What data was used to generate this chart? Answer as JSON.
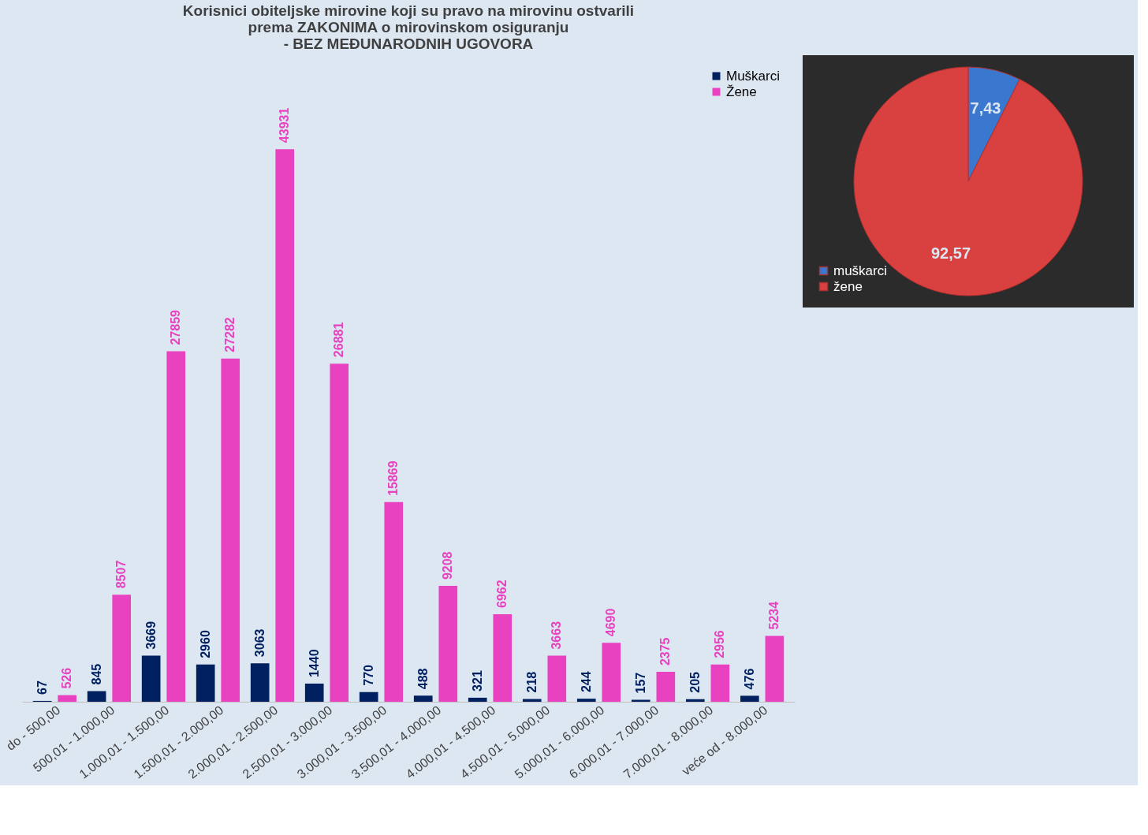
{
  "chart_data": [
    {
      "type": "bar",
      "title": "Korisnici obiteljske mirovine koji su pravo na mirovinu ostvarili\nprema ZAKONIMA o mirovinskom osiguranju\n- BEZ MEĐUNARODNIH UGOVORA",
      "categories": [
        "do - 500,00",
        "500,01 - 1.000,00",
        "1.000,01 - 1.500,00",
        "1.500,01 - 2.000,00",
        "2.000,01 - 2.500,00",
        "2.500,01 - 3.000,00",
        "3.000,01 - 3.500,00",
        "3.500,01 - 4.000,00",
        "4.000,01 - 4.500,00",
        "4.500,01 - 5.000,00",
        "5.000,01 - 6.000,00",
        "6.000,01 - 7.000,00",
        "7.000,01 - 8.000,00",
        "veće od  - 8.000,00"
      ],
      "series": [
        {
          "name": "Muškarci",
          "color": "#002060",
          "values": [
            67,
            845,
            3669,
            2960,
            3063,
            1440,
            770,
            488,
            321,
            218,
            244,
            157,
            205,
            476
          ]
        },
        {
          "name": "Žene",
          "color": "#e842c0",
          "values": [
            526,
            8507,
            27859,
            27282,
            43931,
            26881,
            15869,
            9208,
            6962,
            3663,
            4690,
            2375,
            2956,
            5234
          ]
        }
      ],
      "data_labels": true,
      "legend": "top right",
      "tick_labels": "x",
      "grid": false
    },
    {
      "type": "pie",
      "categories": [
        "muškarci",
        "žene"
      ],
      "values": [
        7.43,
        92.57
      ],
      "colors": [
        "#3a78d0",
        "#d94040"
      ],
      "value_labels": [
        "7,43",
        "92,57"
      ],
      "legend": "bottom left"
    }
  ]
}
